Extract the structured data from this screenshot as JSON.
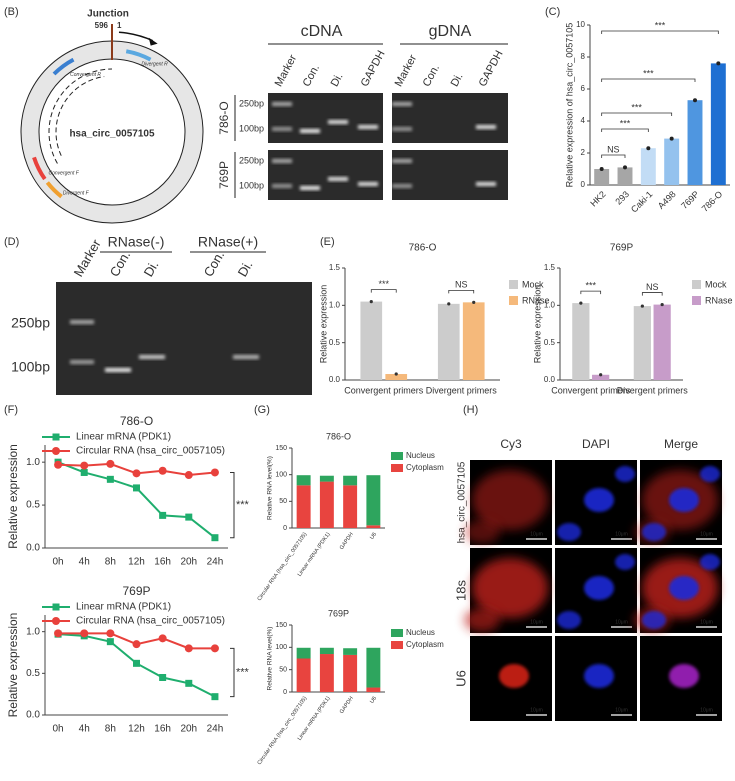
{
  "panel_labels": [
    "(B)",
    "(C)",
    "(D)",
    "(E)",
    "(F)",
    "(G)",
    "(H)"
  ],
  "panel_b": {
    "diagram": {
      "junction": "Junction",
      "left_pos": "596",
      "right_pos": "1",
      "circle": "hsa_circ_0057105",
      "primers": [
        "Divergent R",
        "Convergent R",
        "Convergent F",
        "Divergent F"
      ]
    },
    "gel": {
      "groups": [
        "cDNA",
        "gDNA"
      ],
      "lanes": [
        "Marker",
        "Con.",
        "Di.",
        "GAPDH",
        "Marker",
        "Con.",
        "Di.",
        "GAPDH"
      ],
      "rows": [
        "786-O",
        "769P"
      ],
      "sizes": [
        "250bp",
        "100bp",
        "250bp",
        "100bp"
      ]
    }
  },
  "panel_d": {
    "groups": [
      "RNase(-)",
      "RNase(+)"
    ],
    "lanes": [
      "Marker",
      "Con.",
      "Di.",
      "Con.",
      "Di."
    ],
    "sizes": [
      "250bp",
      "100bp"
    ]
  },
  "panel_h": {
    "columns": [
      "Cy3",
      "DAPI",
      "Merge"
    ],
    "rows": [
      "hsa_circ_0057105",
      "18s",
      "U6"
    ],
    "scale_bars": [
      "10μm",
      "10μm",
      "10μm",
      "10μm",
      "10μm",
      "10μm",
      "10μm",
      "10μm",
      "10μm"
    ]
  },
  "chart_data": [
    {
      "type": "bar",
      "ylabel": "Relative expression of hsa_circ_0057105",
      "categories": [
        "HK2",
        "293",
        "Caki-1",
        "A498",
        "769P",
        "786-O"
      ],
      "values": [
        1.0,
        1.1,
        2.3,
        2.9,
        5.3,
        7.6
      ],
      "colors": [
        "#a6a6a6",
        "#a6a6a6",
        "#c2dcf5",
        "#94c2ee",
        "#4f96e0",
        "#1e6fd2"
      ],
      "ylim": [
        0,
        10
      ],
      "yticks": [
        0,
        2,
        4,
        6,
        8,
        10
      ],
      "annotations": [
        "NS",
        "***",
        "***",
        "***",
        "***"
      ]
    },
    {
      "type": "grouped_bar",
      "title": "786-O",
      "ylabel": "Relative expression",
      "categories": [
        "Convergent primers",
        "Divergent primers"
      ],
      "series": [
        {
          "name": "Mock",
          "color": "#cccccc",
          "values": [
            1.05,
            1.02
          ]
        },
        {
          "name": "RNase",
          "color": "#f5b97b",
          "values": [
            0.08,
            1.04
          ]
        }
      ],
      "ylim": [
        0,
        1.5
      ],
      "yticks": [
        {
          "value": 0,
          "label": "0.0"
        },
        {
          "value": 0.5,
          "label": "0.5"
        },
        {
          "value": 1,
          "label": "1.0"
        },
        {
          "value": 1.5,
          "label": "1.5"
        }
      ],
      "annotations": [
        "***",
        "NS"
      ]
    },
    {
      "type": "grouped_bar",
      "title": "769P",
      "ylabel": "Relative expression",
      "categories": [
        "Convergent primers",
        "Divergent primers"
      ],
      "series": [
        {
          "name": "Mock",
          "color": "#cccccc",
          "values": [
            1.03,
            0.99
          ]
        },
        {
          "name": "RNase",
          "color": "#c79cc9",
          "values": [
            0.07,
            1.01
          ]
        }
      ],
      "ylim": [
        0,
        1.5
      ],
      "yticks": [
        {
          "value": 0,
          "label": "0.0"
        },
        {
          "value": 0.5,
          "label": "0.5"
        },
        {
          "value": 1,
          "label": "1.0"
        },
        {
          "value": 1.5,
          "label": "1.5"
        }
      ],
      "annotations": [
        "***",
        "NS"
      ]
    },
    {
      "type": "line",
      "title": "786-O",
      "ylabel": "Relative expression",
      "categories": [
        "0h",
        "4h",
        "8h",
        "12h",
        "16h",
        "20h",
        "24h"
      ],
      "series": [
        {
          "name": "Linear mRNA (PDK1)",
          "color": "#1fae6e",
          "values": [
            1.0,
            0.88,
            0.8,
            0.7,
            0.38,
            0.36,
            0.12
          ]
        },
        {
          "name": "Circular RNA (hsa_circ_0057105)",
          "color": "#e8413c",
          "values": [
            0.97,
            0.96,
            0.98,
            0.87,
            0.9,
            0.85,
            0.88
          ]
        }
      ],
      "ylim": [
        0,
        1.2
      ],
      "yticks": [
        {
          "value": 0,
          "label": "0.0"
        },
        {
          "value": 0.5,
          "label": "0.5"
        },
        {
          "value": 1,
          "label": "1.0"
        }
      ],
      "annotations": [
        "***"
      ]
    },
    {
      "type": "line",
      "title": "769P",
      "ylabel": "Relative expression",
      "categories": [
        "0h",
        "4h",
        "8h",
        "12h",
        "16h",
        "20h",
        "24h"
      ],
      "series": [
        {
          "name": "Linear mRNA (PDK1)",
          "color": "#1fae6e",
          "values": [
            0.97,
            0.95,
            0.88,
            0.62,
            0.45,
            0.38,
            0.22
          ]
        },
        {
          "name": "Circular RNA (hsa_circ_0057105)",
          "color": "#e8413c",
          "values": [
            0.98,
            0.98,
            0.98,
            0.85,
            0.92,
            0.8,
            0.8
          ]
        }
      ],
      "ylim": [
        0,
        1.2
      ],
      "yticks": [
        {
          "value": 0,
          "label": "0.0"
        },
        {
          "value": 0.5,
          "label": "0.5"
        },
        {
          "value": 1,
          "label": "1.0"
        }
      ],
      "annotations": [
        "***"
      ]
    },
    {
      "type": "stacked_bar",
      "title": "786-O",
      "ylabel": "Relative RNA level(%)",
      "categories": [
        "Circular RNA (hsa_circ_0057105)",
        "Linear mRNA (PDK1)",
        "GAPDH",
        "U6"
      ],
      "series": [
        {
          "name": "Nucleus",
          "color": "#2ea55e",
          "values": [
            19,
            11,
            18,
            94
          ]
        },
        {
          "name": "Cytoplasm",
          "color": "#e8443f",
          "values": [
            80,
            87,
            80,
            5
          ]
        }
      ],
      "ylim": [
        0,
        150
      ],
      "yticks": [
        0,
        50,
        100,
        150
      ]
    },
    {
      "type": "stacked_bar",
      "title": "769P",
      "ylabel": "Relative RNA level(%)",
      "categories": [
        "Circular RNA (hsa_circ_0057105)",
        "Linear mRNA (PDK1)",
        "GAPDH",
        "U6"
      ],
      "series": [
        {
          "name": "Nucleus",
          "color": "#2ea55e",
          "values": [
            24,
            14,
            15,
            89
          ]
        },
        {
          "name": "Cytoplasm",
          "color": "#e8443f",
          "values": [
            75,
            85,
            83,
            10
          ]
        }
      ],
      "ylim": [
        0,
        150
      ],
      "yticks": [
        0,
        50,
        100,
        150
      ]
    }
  ]
}
